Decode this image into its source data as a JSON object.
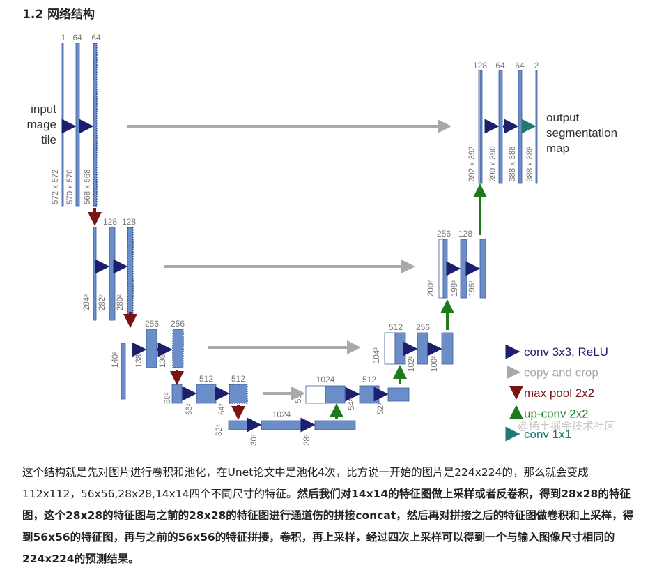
{
  "heading": "1.2 网络结构",
  "diagram": {
    "input_lines": [
      "input",
      "mage",
      "tile"
    ],
    "output_lines": [
      "output",
      "segmentation",
      "map"
    ],
    "blocks": [
      {
        "id": "b1",
        "channels": "1",
        "size": "572 x 572"
      },
      {
        "id": "b2",
        "channels": "64",
        "size": "570 x 570"
      },
      {
        "id": "b3",
        "channels": "64",
        "size": "568 x 568"
      },
      {
        "id": "b4",
        "channels": "",
        "size": "284²"
      },
      {
        "id": "b5",
        "channels": "128",
        "size": "282²"
      },
      {
        "id": "b6",
        "channels": "128",
        "size": "280²"
      },
      {
        "id": "b7",
        "channels": "",
        "size": "140²"
      },
      {
        "id": "b8",
        "channels": "256",
        "size": "138²"
      },
      {
        "id": "b9",
        "channels": "256",
        "size": "136²"
      },
      {
        "id": "b10",
        "channels": "",
        "size": "68²"
      },
      {
        "id": "b11",
        "channels": "512",
        "size": "66²"
      },
      {
        "id": "b12",
        "channels": "512",
        "size": "64²"
      },
      {
        "id": "b13",
        "channels": "",
        "size": "32²"
      },
      {
        "id": "b14",
        "channels": "1024",
        "size": "30²"
      },
      {
        "id": "b15",
        "channels": "",
        "size": "28²"
      },
      {
        "id": "b16",
        "channels": "1024",
        "size": "56²"
      },
      {
        "id": "b17",
        "channels": "512",
        "size": "54²"
      },
      {
        "id": "b18",
        "channels": "",
        "size": "52²"
      },
      {
        "id": "b19",
        "channels": "512",
        "size": "104²"
      },
      {
        "id": "b20",
        "channels": "256",
        "size": "102²"
      },
      {
        "id": "b21",
        "channels": "",
        "size": "100²"
      },
      {
        "id": "b22",
        "channels": "256",
        "size": "200²"
      },
      {
        "id": "b23",
        "channels": "128",
        "size": "198²"
      },
      {
        "id": "b24",
        "channels": "",
        "size": "196²"
      },
      {
        "id": "b25",
        "channels": "128",
        "size": "392 x 392"
      },
      {
        "id": "b26",
        "channels": "64",
        "size": "390 x 390"
      },
      {
        "id": "b27",
        "channels": "64",
        "size": "388 x 388"
      },
      {
        "id": "b28",
        "channels": "2",
        "size": "388 x 388"
      }
    ],
    "legend": [
      {
        "label": "conv 3x3, ReLU",
        "color": "#1b1f6e"
      },
      {
        "label": "copy and crop",
        "color": "#a9a9a9"
      },
      {
        "label": "max pool 2x2",
        "color": "#7a1414"
      },
      {
        "label": "up-conv 2x2",
        "color": "#1d7a1d"
      },
      {
        "label": "conv 1x1",
        "color": "#1f7a72"
      }
    ],
    "watermark": "@稀土掘金技术社区",
    "colors": {
      "block": "#6b8ec9",
      "block_edge": "#3e5f99",
      "conv": "#1b1f6e",
      "copy": "#a9a9a9",
      "pool": "#7a1414",
      "up": "#1d7a1d",
      "final": "#1f7a72"
    }
  },
  "paragraph": {
    "normal": "这个结构就是先对图片进行卷积和池化，在Unet论文中是池化4次，比方说一开始的图片是224x224的，那么就会变成112x112，56x56,28x28,14x14四个不同尺寸的特征。",
    "bold": "然后我们对14x14的特征图做上采样或者反卷积，得到28x28的特征图，这个28x28的特征图与之前的28x28的特征图进行通道伤的拼接concat，然后再对拼接之后的特征图做卷积和上采样，得到56x56的特征图，再与之前的56x56的特征拼接，卷积，再上采样，经过四次上采样可以得到一个与输入图像尺寸相同的224x224的预测结果。"
  }
}
